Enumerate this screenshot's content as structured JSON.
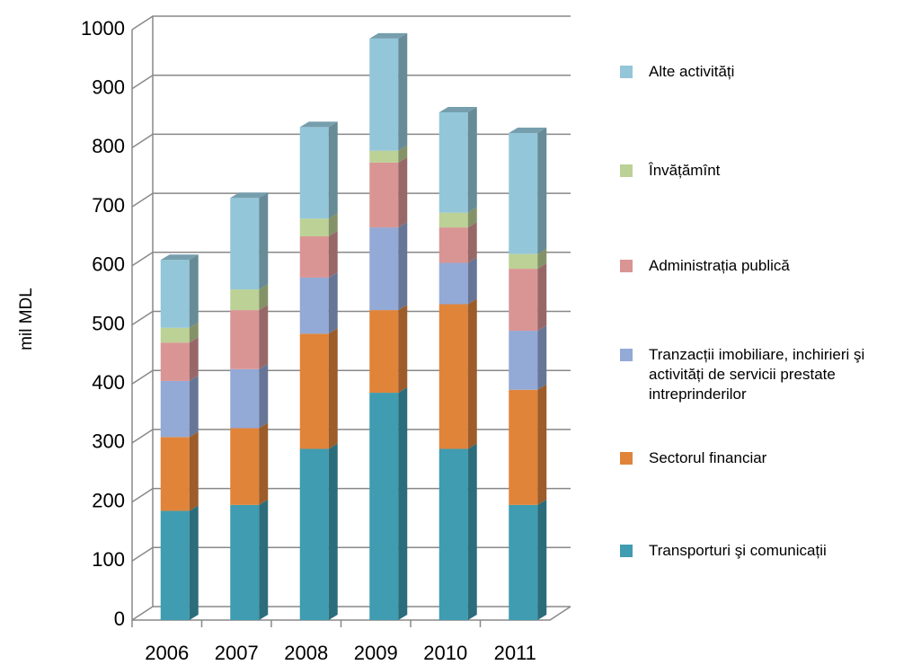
{
  "chart_data": {
    "type": "stacked-bar-3d",
    "y_label": "mil MDL",
    "categories": [
      "2006",
      "2007",
      "2008",
      "2009",
      "2010",
      "2011"
    ],
    "series": [
      {
        "name": "Transporturi şi comunicații",
        "color": "#3f9cb1",
        "values": [
          185,
          195,
          290,
          385,
          290,
          195
        ]
      },
      {
        "name": "Sectorul financiar",
        "color": "#e0843a",
        "values": [
          125,
          130,
          195,
          140,
          245,
          195
        ]
      },
      {
        "name": "Tranzacții imobiliare, inchirieri şi activități de servicii prestate intreprinderilor",
        "color": "#93a9d6",
        "values": [
          95,
          100,
          95,
          140,
          70,
          100
        ]
      },
      {
        "name": "Administrația publică",
        "color": "#d99594",
        "values": [
          65,
          100,
          70,
          110,
          60,
          105
        ]
      },
      {
        "name": "Învățămînt",
        "color": "#bcd195",
        "values": [
          25,
          35,
          30,
          20,
          25,
          25
        ]
      },
      {
        "name": "Alte activități",
        "color": "#93c6d8",
        "values": [
          115,
          155,
          155,
          190,
          170,
          205
        ]
      }
    ],
    "ylim": [
      0,
      1000
    ],
    "yticks": [
      0,
      100,
      200,
      300,
      400,
      500,
      600,
      700,
      800,
      900,
      1000
    ],
    "grid": true,
    "legend": "right"
  }
}
